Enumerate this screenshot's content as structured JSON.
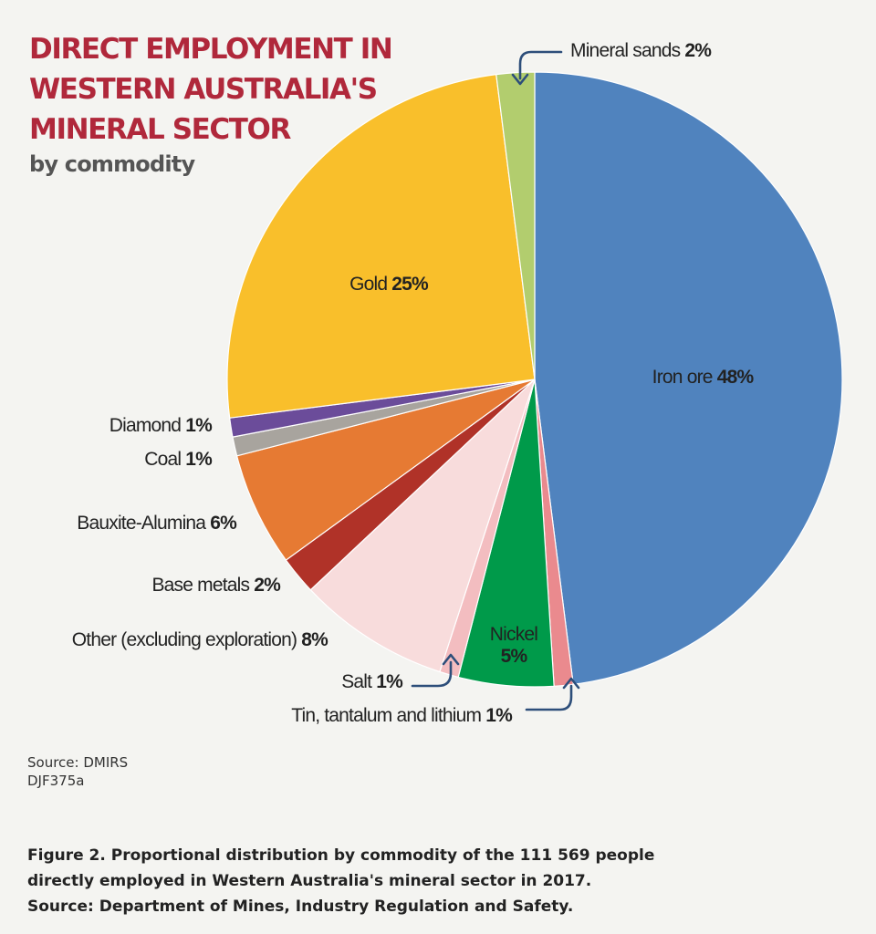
{
  "chart_data": {
    "type": "pie",
    "title": [
      "DIRECT EMPLOYMENT IN",
      "WESTERN AUSTRALIA'S",
      "MINERAL SECTOR"
    ],
    "subtitle": "by commodity",
    "start_angle_deg": 0,
    "direction": "clockwise",
    "slices": [
      {
        "label": "Iron ore",
        "value": 48,
        "display": "48%",
        "color": "#5083be"
      },
      {
        "label": "Tin, tantalum and lithium",
        "value": 1,
        "display": "1%",
        "color": "#ea8a8e"
      },
      {
        "label": "Nickel",
        "value": 5,
        "display": "5%",
        "color": "#009a4a"
      },
      {
        "label": "Salt",
        "value": 1,
        "display": "1%",
        "color": "#f3bdc0"
      },
      {
        "label": "Other (excluding exploration)",
        "value": 8,
        "display": "8%",
        "color": "#f8dcdc"
      },
      {
        "label": "Base metals",
        "value": 2,
        "display": "2%",
        "color": "#b03228"
      },
      {
        "label": "Bauxite-Alumina",
        "value": 6,
        "display": "6%",
        "color": "#e67a33"
      },
      {
        "label": "Coal",
        "value": 1,
        "display": "1%",
        "color": "#a8a49e"
      },
      {
        "label": "Diamond",
        "value": 1,
        "display": "1%",
        "color": "#6b4c9a"
      },
      {
        "label": "Gold",
        "value": 25,
        "display": "25%",
        "color": "#f9bf2b"
      },
      {
        "label": "Mineral sands",
        "value": 2,
        "display": "2%",
        "color": "#b2cd6e"
      }
    ]
  },
  "source_lines": [
    "Source: DMIRS",
    "DJF375a"
  ],
  "caption_lines": [
    "Figure 2. Proportional distribution by commodity of the 111 569 people",
    "directly employed in Western Australia's mineral sector in 2017.",
    "Source: Department of Mines, Industry Regulation and Safety."
  ],
  "arrow_color": "#2d4e7a"
}
